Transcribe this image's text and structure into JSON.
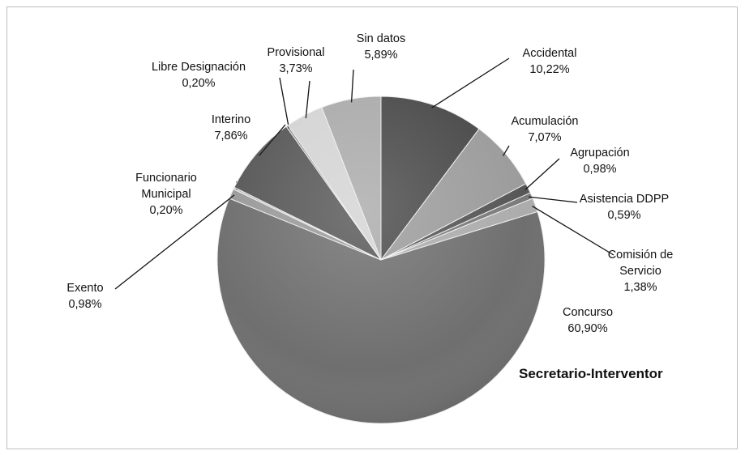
{
  "chart_data": {
    "type": "pie",
    "title": "Secretario-Interventor",
    "categories": [
      "Accidental",
      "Acumulación",
      "Agrupación",
      "Asistencia DDPP",
      "Comisión de Servicio",
      "Concurso",
      "Exento",
      "Funcionario Municipal",
      "Interino",
      "Libre Designación",
      "Provisional",
      "Sin datos"
    ],
    "values": [
      10.22,
      7.07,
      0.98,
      0.59,
      1.38,
      60.9,
      0.98,
      0.2,
      7.86,
      0.2,
      3.73,
      5.89
    ],
    "value_labels": [
      "10,22%",
      "7,07%",
      "0,98%",
      "0,59%",
      "1,38%",
      "60,90%",
      "0,98%",
      "0,20%",
      "7,86%",
      "0,20%",
      "3,73%",
      "5,89%"
    ],
    "colors": [
      "#4b4b4b",
      "#9c9c9c",
      "#575757",
      "#7a7a7a",
      "#acacac",
      "#6f6f6f",
      "#9a9a9a",
      "#bdbdbd",
      "#585858",
      "#8a8a8a",
      "#d4d4d4",
      "#ababab"
    ]
  }
}
